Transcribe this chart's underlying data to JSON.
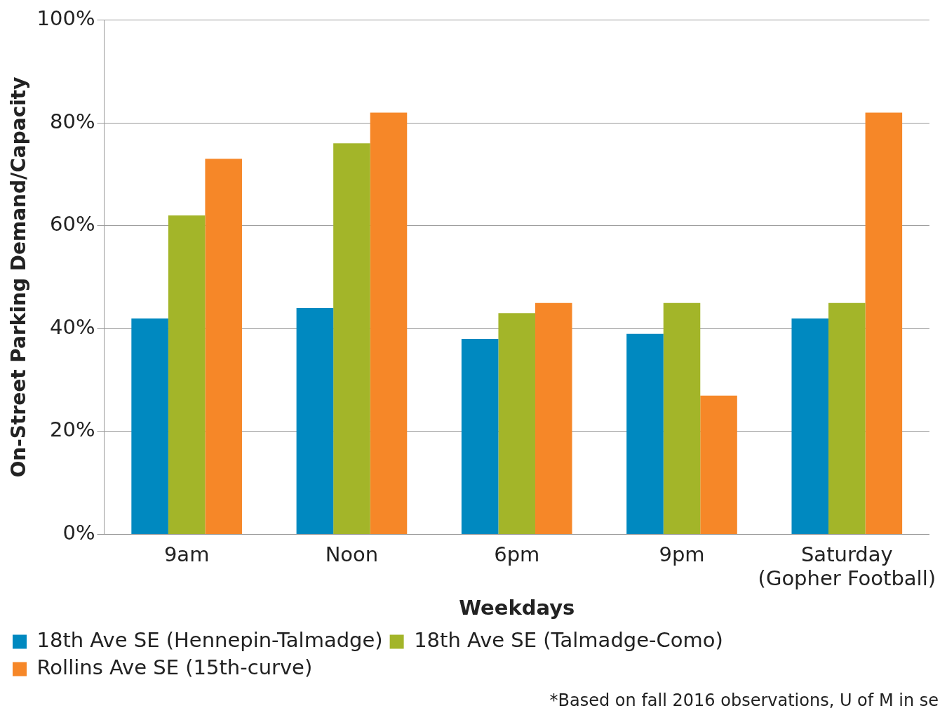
{
  "chart_data": {
    "type": "bar",
    "xlabel": "Weekdays",
    "ylabel": "On-Street Parking Demand/Capacity",
    "categories": [
      "9am",
      "Noon",
      "6pm",
      "9pm",
      "Saturday (Gopher Football)"
    ],
    "series": [
      {
        "name": "18th Ave SE (Hennepin-Talmadge)",
        "color": "#0089c0",
        "values": [
          42,
          44,
          38,
          39,
          42
        ]
      },
      {
        "name": "18th Ave SE (Talmadge-Como)",
        "color": "#a3b529",
        "values": [
          62,
          76,
          43,
          45,
          45
        ]
      },
      {
        "name": "Rollins Ave SE (15th-curve)",
        "color": "#f68728",
        "values": [
          73,
          82,
          45,
          27,
          82
        ]
      }
    ],
    "ylim": [
      0,
      100
    ],
    "yticks": [
      {
        "value": 0,
        "label": "0%"
      },
      {
        "value": 20,
        "label": "20%"
      },
      {
        "value": 40,
        "label": "40%"
      },
      {
        "value": 60,
        "label": "60%"
      },
      {
        "value": 80,
        "label": "80%"
      },
      {
        "value": 100,
        "label": "100%"
      }
    ],
    "grid": "y",
    "legend": "bottom",
    "annotations": [
      "*Based on fall 2016 observations, U of M in se"
    ]
  }
}
